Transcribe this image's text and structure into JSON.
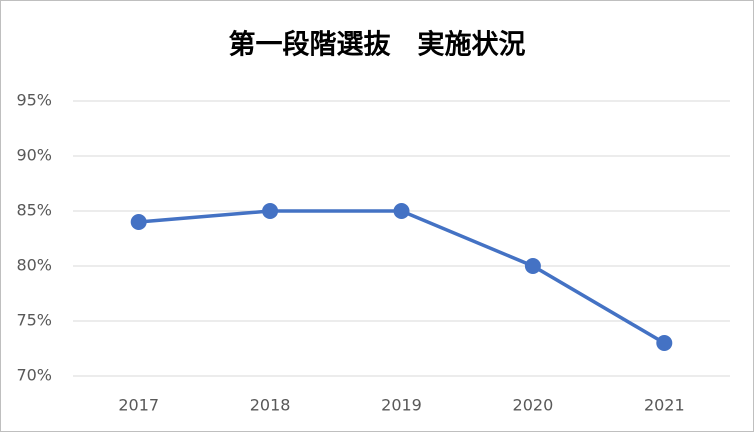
{
  "chart_data": {
    "type": "line",
    "title": "第一段階選抜　実施状況",
    "categories": [
      "2017",
      "2018",
      "2019",
      "2020",
      "2021"
    ],
    "series": [
      {
        "name": "実施状況",
        "color": "#4472c4",
        "values": [
          84,
          85,
          85,
          80,
          73
        ]
      }
    ],
    "ylim": [
      70,
      95
    ],
    "yticks": [
      {
        "value": 70,
        "label": "70%"
      },
      {
        "value": 75,
        "label": "75%"
      },
      {
        "value": 80,
        "label": "80%"
      },
      {
        "value": 85,
        "label": "85%"
      },
      {
        "value": 90,
        "label": "90%"
      },
      {
        "value": 95,
        "label": "95%"
      }
    ],
    "grid": true
  }
}
